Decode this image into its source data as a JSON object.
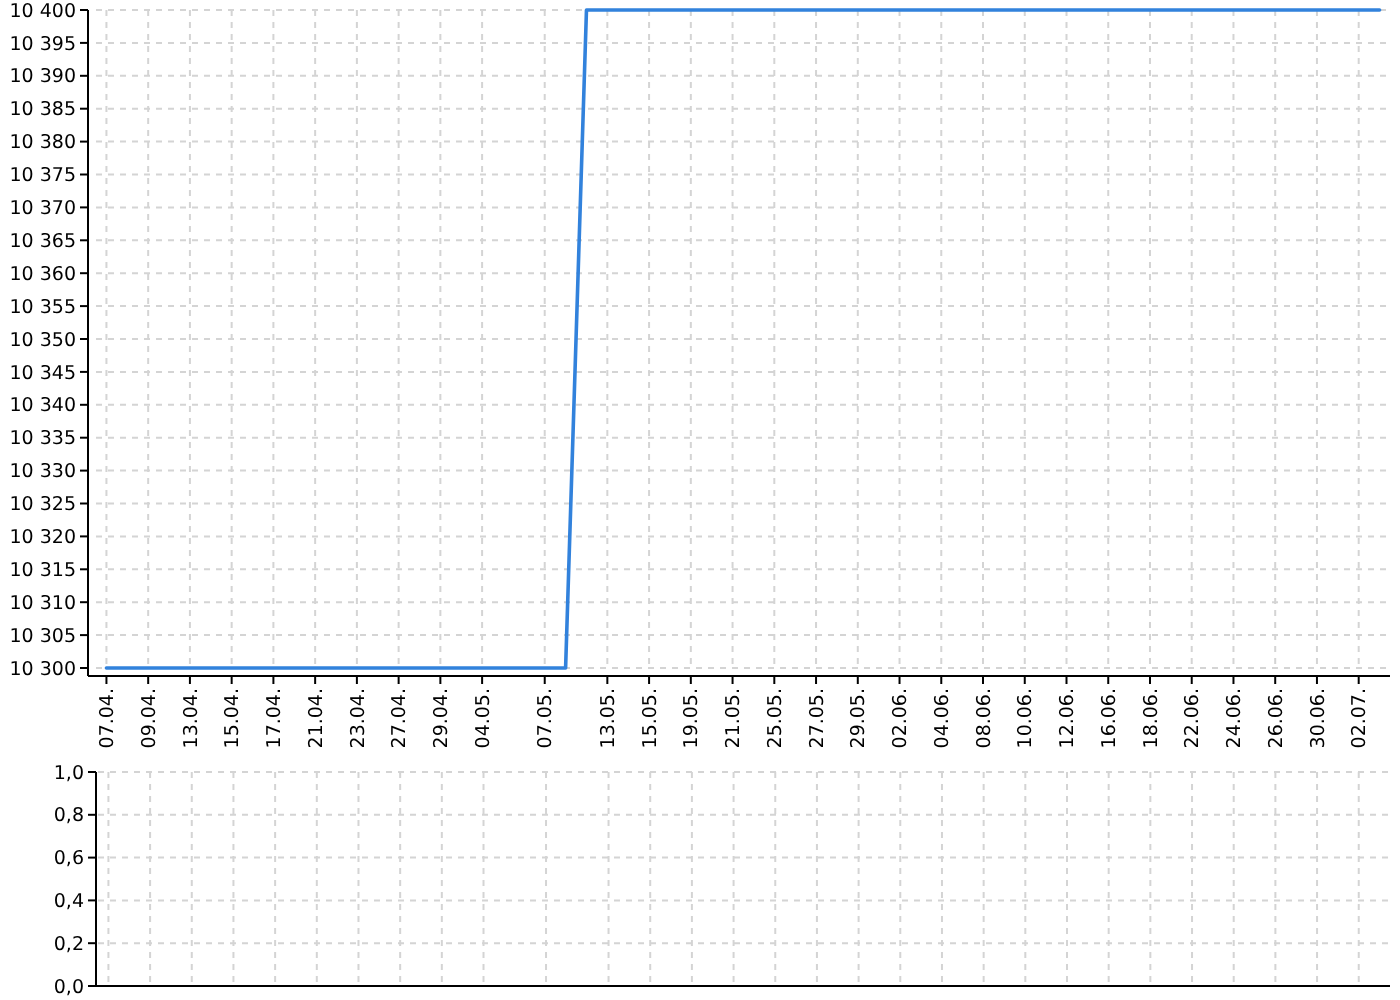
{
  "chart_data": [
    {
      "type": "line",
      "categories": [
        "07.04.",
        null,
        "09.04.",
        null,
        "13.04.",
        null,
        "15.04.",
        null,
        "17.04.",
        null,
        "21.04.",
        null,
        "23.04.",
        null,
        "27.04.",
        null,
        "29.04.",
        null,
        "04.05.",
        null,
        null,
        "07.05.",
        null,
        null,
        "13.05.",
        null,
        "15.05.",
        null,
        "19.05.",
        null,
        "21.05.",
        null,
        "25.05.",
        null,
        "27.05.",
        null,
        "29.05.",
        null,
        "02.06.",
        null,
        "04.06.",
        null,
        "08.06.",
        null,
        "10.06.",
        null,
        "12.06.",
        null,
        "16.06.",
        null,
        "18.06.",
        null,
        "22.06.",
        null,
        "24.06.",
        null,
        "26.06.",
        null,
        "30.06.",
        null,
        "02.07.",
        null
      ],
      "values": [
        10300,
        10300,
        10300,
        10300,
        10300,
        10300,
        10300,
        10300,
        10300,
        10300,
        10300,
        10300,
        10300,
        10300,
        10300,
        10300,
        10300,
        10300,
        10300,
        10300,
        10300,
        10300,
        10300,
        10400,
        10400,
        10400,
        10400,
        10400,
        10400,
        10400,
        10400,
        10400,
        10400,
        10400,
        10400,
        10400,
        10400,
        10400,
        10400,
        10400,
        10400,
        10400,
        10400,
        10400,
        10400,
        10400,
        10400,
        10400,
        10400,
        10400,
        10400,
        10400,
        10400,
        10400,
        10400,
        10400,
        10400,
        10400,
        10400,
        10400,
        10400,
        10400
      ],
      "color": "#3282dc",
      "ylim": [
        10300,
        10400
      ],
      "yticks": [
        {
          "value": 10300,
          "label": "10 300"
        },
        {
          "value": 10305,
          "label": "10 305"
        },
        {
          "value": 10310,
          "label": "10 310"
        },
        {
          "value": 10315,
          "label": "10 315"
        },
        {
          "value": 10320,
          "label": "10 320"
        },
        {
          "value": 10325,
          "label": "10 325"
        },
        {
          "value": 10330,
          "label": "10 330"
        },
        {
          "value": 10335,
          "label": "10 335"
        },
        {
          "value": 10340,
          "label": "10 340"
        },
        {
          "value": 10345,
          "label": "10 345"
        },
        {
          "value": 10350,
          "label": "10 350"
        },
        {
          "value": 10355,
          "label": "10 355"
        },
        {
          "value": 10360,
          "label": "10 360"
        },
        {
          "value": 10365,
          "label": "10 365"
        },
        {
          "value": 10370,
          "label": "10 370"
        },
        {
          "value": 10375,
          "label": "10 375"
        },
        {
          "value": 10380,
          "label": "10 380"
        },
        {
          "value": 10385,
          "label": "10 385"
        },
        {
          "value": 10390,
          "label": "10 390"
        },
        {
          "value": 10395,
          "label": "10 395"
        },
        {
          "value": 10400,
          "label": "10 400"
        }
      ],
      "grid": true
    },
    {
      "type": "line",
      "categories": [
        "07.04.",
        null,
        "09.04.",
        null,
        "13.04.",
        null,
        "15.04.",
        null,
        "17.04.",
        null,
        "21.04.",
        null,
        "23.04.",
        null,
        "27.04.",
        null,
        "29.04.",
        null,
        "04.05.",
        null,
        null,
        "07.05.",
        null,
        null,
        "13.05.",
        null,
        "15.05.",
        null,
        "19.05.",
        null,
        "21.05.",
        null,
        "25.05.",
        null,
        "27.05.",
        null,
        "29.05.",
        null,
        "02.06.",
        null,
        "04.06.",
        null,
        "08.06.",
        null,
        "10.06.",
        null,
        "12.06.",
        null,
        "16.06.",
        null,
        "18.06.",
        null,
        "22.06.",
        null,
        "24.06.",
        null,
        "26.06.",
        null,
        "30.06.",
        null,
        "02.07.",
        null
      ],
      "values": [
        null,
        null,
        null,
        null,
        null,
        null,
        null,
        null,
        null,
        null,
        null,
        null,
        null,
        null,
        null,
        null,
        null,
        null,
        null,
        null,
        null,
        null,
        null,
        null,
        null,
        null,
        null,
        null,
        null,
        null,
        null,
        null,
        null,
        null,
        null,
        null,
        null,
        null,
        null,
        null,
        null,
        null,
        null,
        null,
        null,
        null,
        null,
        null,
        null,
        null,
        null,
        null,
        null,
        null,
        null,
        null,
        null,
        null,
        null,
        null,
        null,
        null
      ],
      "ylim": [
        0,
        1
      ],
      "yticks": [
        {
          "value": 0,
          "label": "0,0"
        },
        {
          "value": 0.2,
          "label": "0,2"
        },
        {
          "value": 0.4,
          "label": "0,4"
        },
        {
          "value": 0.6,
          "label": "0,6"
        },
        {
          "value": 0.8,
          "label": "0,8"
        },
        {
          "value": 1,
          "label": "1,0"
        }
      ],
      "grid": true,
      "tick_labels": "y"
    }
  ]
}
